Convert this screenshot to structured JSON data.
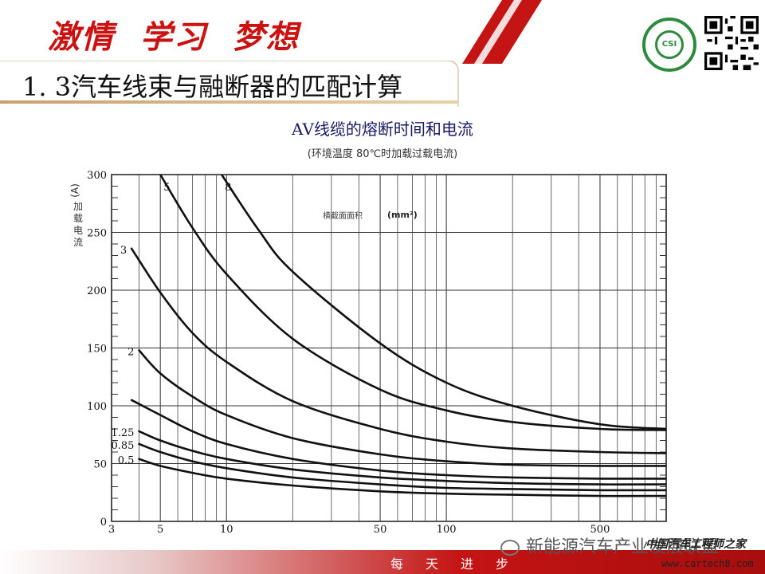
{
  "header": {
    "slogan": "激情  学习  梦想",
    "logo_text": "CSI",
    "section_title": "1. 3汽车线束与融断器的匹配计算"
  },
  "colors": {
    "slogan": "#cc1111",
    "title_line": "#c8a070",
    "logo": "#2e8b3d",
    "footer": "#c41414"
  },
  "icons": {
    "logo": "circular-green-seal-icon",
    "qr": "qr-code-icon",
    "watermark": "wechat-icon"
  },
  "footer": {
    "motto": "每天进步",
    "watermark": "新能源汽车产业发展联盟",
    "site_name": "中国汽车工程师之家",
    "site_url": "www.cartech8.com"
  },
  "chart_data": {
    "type": "line",
    "title": "AV线缆的熔断时间和电流",
    "subtitle": "(环境温度 80℃时加载过载电流)",
    "ylabel": "加载电流",
    "yunit": "(A)",
    "xlabel": "",
    "legend_title": "横截面面积",
    "legend_unit": "(mm²)",
    "x_scale": "log",
    "xlim": [
      3,
      1000
    ],
    "ylim": [
      0,
      300
    ],
    "x_ticks": [
      3,
      5,
      10,
      50,
      100,
      500
    ],
    "y_ticks": [
      0,
      50,
      100,
      150,
      200,
      250,
      300
    ],
    "grid": true,
    "series": [
      {
        "name": "0.5",
        "x": [
          4,
          5,
          7,
          10,
          20,
          50,
          100,
          200,
          500,
          1000
        ],
        "y": [
          54,
          48,
          42,
          37,
          31,
          26,
          24,
          23,
          22,
          22
        ]
      },
      {
        "name": "0.85",
        "x": [
          4,
          5,
          7,
          10,
          20,
          50,
          100,
          200,
          500,
          1000
        ],
        "y": [
          67,
          60,
          52,
          46,
          38,
          32,
          29,
          28,
          27,
          27
        ]
      },
      {
        "name": "1.25",
        "x": [
          4,
          5,
          7,
          10,
          20,
          50,
          100,
          200,
          500,
          1000
        ],
        "y": [
          78,
          70,
          61,
          54,
          45,
          38,
          35,
          33,
          32,
          32
        ]
      },
      {
        "name": "",
        "x": [
          3.7,
          5,
          7,
          10,
          20,
          50,
          100,
          200,
          500,
          1000
        ],
        "y": [
          105,
          92,
          78,
          67,
          54,
          44,
          40,
          38,
          37,
          37
        ]
      },
      {
        "name": "2",
        "x": [
          4,
          5,
          7,
          10,
          20,
          50,
          100,
          200,
          500,
          1000
        ],
        "y": [
          148,
          128,
          108,
          92,
          72,
          58,
          52,
          49,
          48,
          48
        ]
      },
      {
        "name": "3",
        "x": [
          3.7,
          5,
          7,
          10,
          20,
          50,
          100,
          200,
          500,
          1000
        ],
        "y": [
          236,
          198,
          163,
          138,
          104,
          80,
          69,
          63,
          60,
          59
        ]
      },
      {
        "name": "5",
        "x": [
          5,
          7,
          10,
          20,
          50,
          100,
          200,
          500,
          1000
        ],
        "y": [
          300,
          254,
          214,
          158,
          114,
          96,
          86,
          80,
          79
        ]
      },
      {
        "name": "8",
        "x": [
          9.5,
          14,
          20,
          50,
          100,
          200,
          500,
          1000
        ],
        "y": [
          300,
          252,
          216,
          154,
          120,
          100,
          84,
          80
        ]
      }
    ]
  }
}
